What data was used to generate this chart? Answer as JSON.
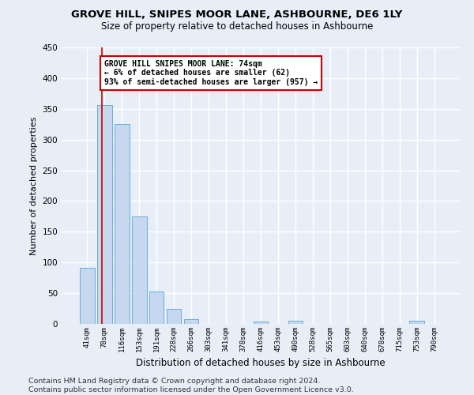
{
  "title": "GROVE HILL, SNIPES MOOR LANE, ASHBOURNE, DE6 1LY",
  "subtitle": "Size of property relative to detached houses in Ashbourne",
  "xlabel": "Distribution of detached houses by size in Ashbourne",
  "ylabel": "Number of detached properties",
  "bar_labels": [
    "41sqm",
    "78sqm",
    "116sqm",
    "153sqm",
    "191sqm",
    "228sqm",
    "266sqm",
    "303sqm",
    "341sqm",
    "378sqm",
    "416sqm",
    "453sqm",
    "490sqm",
    "528sqm",
    "565sqm",
    "603sqm",
    "640sqm",
    "678sqm",
    "715sqm",
    "753sqm",
    "790sqm"
  ],
  "bar_values": [
    91,
    356,
    325,
    175,
    53,
    25,
    8,
    0,
    0,
    0,
    4,
    0,
    5,
    0,
    0,
    0,
    0,
    0,
    0,
    5,
    0
  ],
  "bar_color": "#c5d8f0",
  "bar_edge_color": "#6aaed6",
  "annotation_text": "GROVE HILL SNIPES MOOR LANE: 74sqm\n← 6% of detached houses are smaller (62)\n93% of semi-detached houses are larger (957) →",
  "annotation_box_color": "#ffffff",
  "annotation_box_edge_color": "#cc0000",
  "vline_color": "#cc0000",
  "vline_x_index": 0.87,
  "ylim": [
    0,
    450
  ],
  "yticks": [
    0,
    50,
    100,
    150,
    200,
    250,
    300,
    350,
    400,
    450
  ],
  "footer_text": "Contains HM Land Registry data © Crown copyright and database right 2024.\nContains public sector information licensed under the Open Government Licence v3.0.",
  "background_color": "#e8eef8",
  "plot_background_color": "#e8eef8",
  "grid_color": "#ffffff",
  "title_fontsize": 9.5,
  "subtitle_fontsize": 8.5,
  "footer_fontsize": 6.8
}
